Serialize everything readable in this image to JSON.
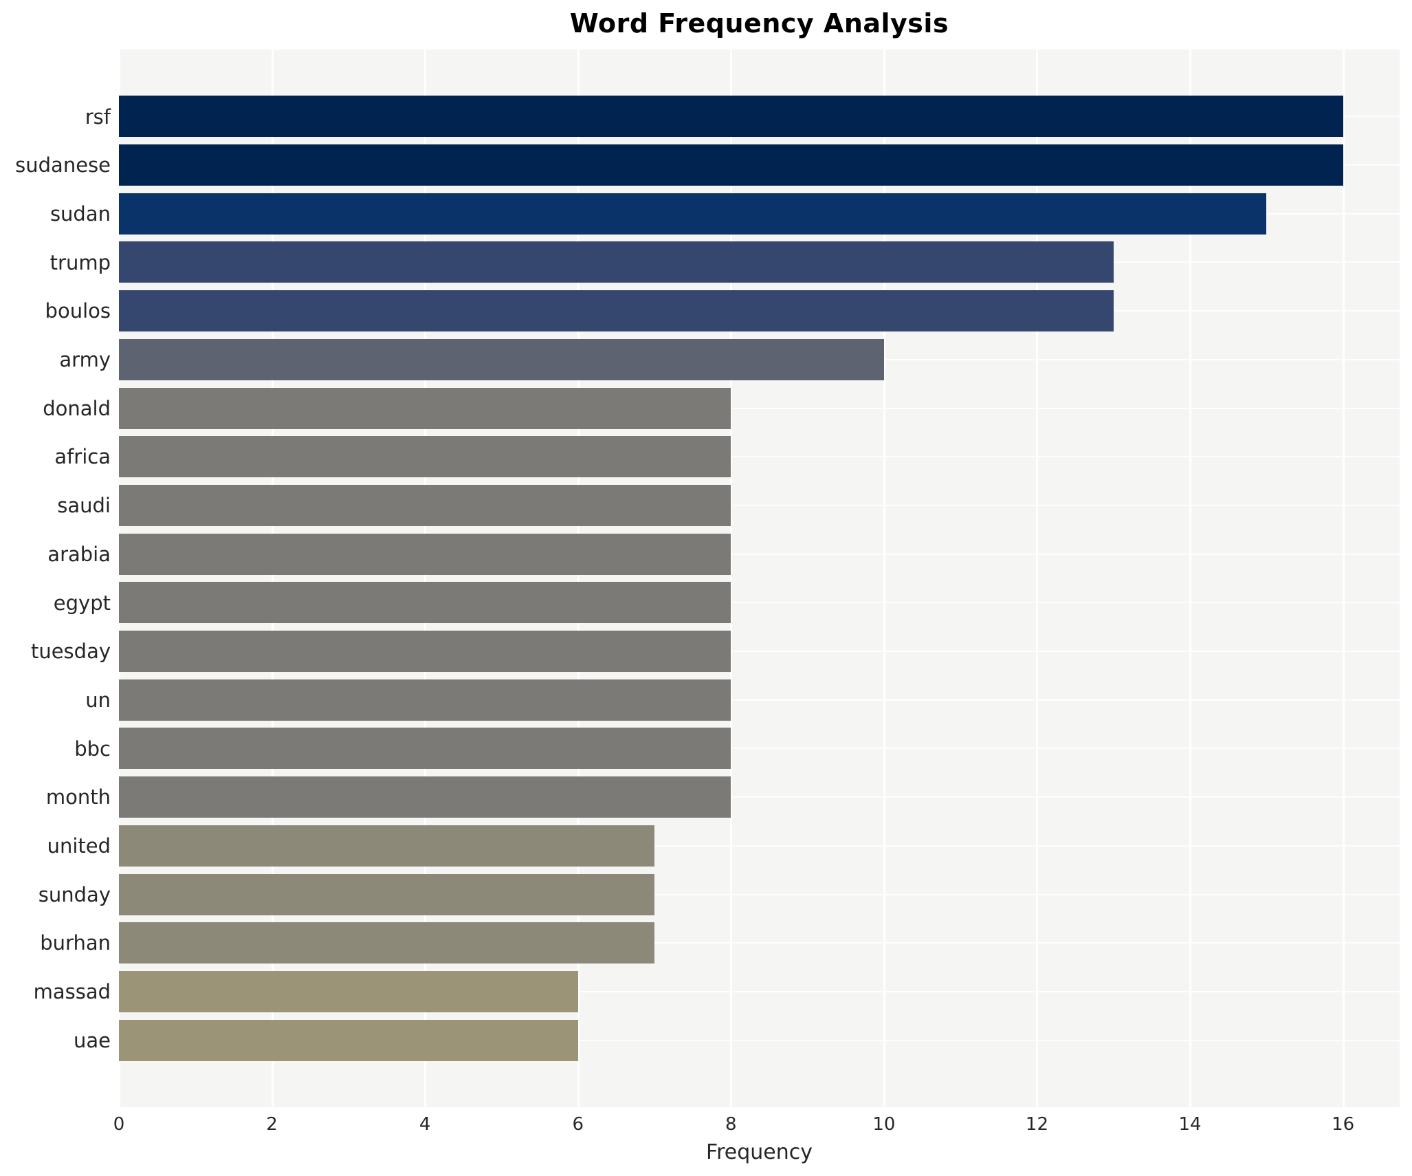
{
  "page": {
    "title": "Word Frequency Analysis"
  },
  "chart_data": {
    "type": "bar",
    "orientation": "horizontal",
    "title": "Word Frequency Analysis",
    "xlabel": "Frequency",
    "ylabel": "",
    "categories": [
      "rsf",
      "sudanese",
      "sudan",
      "trump",
      "boulos",
      "army",
      "donald",
      "africa",
      "saudi",
      "arabia",
      "egypt",
      "tuesday",
      "un",
      "bbc",
      "month",
      "united",
      "sunday",
      "burhan",
      "massad",
      "uae"
    ],
    "values": [
      16,
      16,
      15,
      13,
      13,
      10,
      8,
      8,
      8,
      8,
      8,
      8,
      8,
      8,
      8,
      7,
      7,
      7,
      6,
      6
    ],
    "bar_colors": [
      "#01234f",
      "#01234f",
      "#0a3369",
      "#36476f",
      "#36476f",
      "#5d6370",
      "#7b7a76",
      "#7b7a76",
      "#7b7a76",
      "#7b7a76",
      "#7b7a76",
      "#7b7a76",
      "#7b7a76",
      "#7b7a76",
      "#7b7a76",
      "#8c8979",
      "#8c8979",
      "#8c8979",
      "#9c9476",
      "#9c9476"
    ],
    "x_ticks": [
      0,
      2,
      4,
      6,
      8,
      10,
      12,
      14,
      16
    ],
    "xlim": [
      0,
      16.74
    ],
    "grid": true,
    "legend": "none",
    "plot_bg_color": "#f5f5f4",
    "grid_color": "#ffffff",
    "text_color": "#262626"
  }
}
